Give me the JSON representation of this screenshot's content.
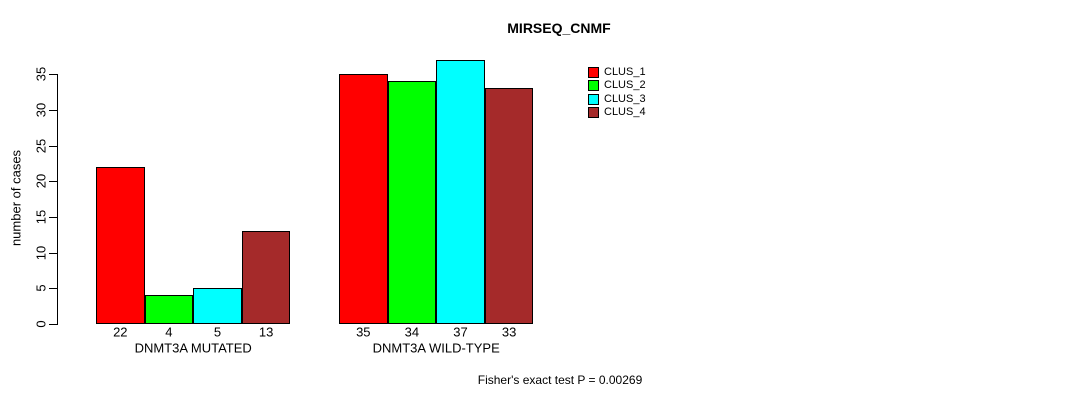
{
  "chart_data": {
    "type": "bar",
    "title": "MIRSEQ_CNMF",
    "ylabel": "number of cases",
    "xlabel": "",
    "categories": [
      "DNMT3A MUTATED",
      "DNMT3A WILD-TYPE"
    ],
    "series": [
      {
        "name": "CLUS_1",
        "color": "#ff0000",
        "values": [
          22,
          35
        ]
      },
      {
        "name": "CLUS_2",
        "color": "#00ff00",
        "values": [
          4,
          34
        ]
      },
      {
        "name": "CLUS_3",
        "color": "#00ffff",
        "values": [
          5,
          37
        ]
      },
      {
        "name": "CLUS_4",
        "color": "#a52a2a",
        "values": [
          13,
          33
        ]
      }
    ],
    "yticks": [
      0,
      5,
      10,
      15,
      20,
      25,
      30,
      35
    ],
    "ylim": [
      0,
      37
    ],
    "grid": false,
    "legend_position": "top-right-inside",
    "show_value_labels": true,
    "annotation": "Fisher's exact test P = 0.00269",
    "bar_border_color": "#000000",
    "axis_color": "#000000",
    "text_color": "#000000",
    "background_color": "#ffffff"
  }
}
